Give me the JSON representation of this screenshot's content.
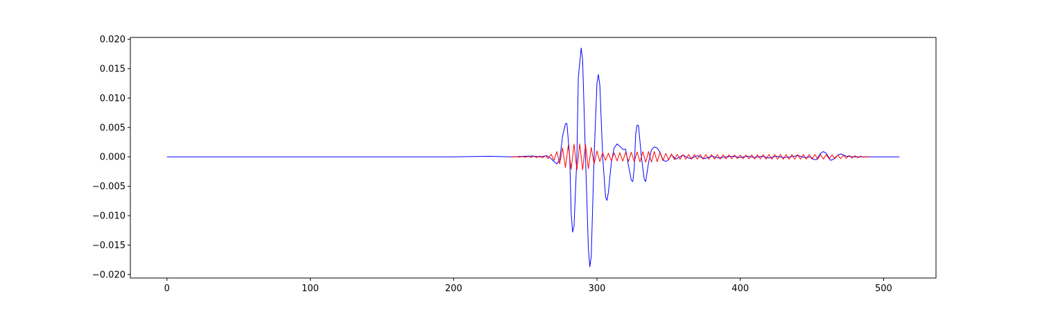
{
  "chart_data": {
    "type": "line",
    "title": "",
    "xlabel": "",
    "ylabel": "",
    "xlim": [
      -25.55,
      536.55
    ],
    "ylim": [
      -0.0206,
      0.0203
    ],
    "grid": false,
    "legend": "none",
    "x_ticks": [
      0,
      100,
      200,
      300,
      400,
      500
    ],
    "x_tick_labels": [
      "0",
      "100",
      "200",
      "300",
      "400",
      "500"
    ],
    "y_ticks": [
      0.02,
      0.015,
      0.01,
      0.005,
      0.0,
      -0.005,
      -0.01,
      -0.015,
      -0.02
    ],
    "y_tick_labels": [
      "0.020",
      "0.015",
      "0.010",
      "0.005",
      "0.000",
      "−0.005",
      "−0.010",
      "−0.015",
      "−0.020"
    ],
    "series": [
      {
        "color": "#0000ff",
        "points": [
          [
            0,
            0
          ],
          [
            50,
            0
          ],
          [
            100,
            0
          ],
          [
            150,
            0
          ],
          [
            200,
            0
          ],
          [
            225,
            0.0001
          ],
          [
            240,
            0.0
          ],
          [
            250,
            0.0001
          ],
          [
            255,
            0.00015
          ],
          [
            260,
            0.0
          ],
          [
            265,
            0.0002
          ],
          [
            268,
            -0.0003
          ],
          [
            270,
            -0.0008
          ],
          [
            272,
            -0.0012
          ],
          [
            274,
            -0.0005
          ],
          [
            276,
            0.0035
          ],
          [
            278,
            0.0056
          ],
          [
            279,
            0.0057
          ],
          [
            281,
            0.0
          ],
          [
            282,
            -0.0095
          ],
          [
            283,
            -0.0128
          ],
          [
            284,
            -0.0118
          ],
          [
            286,
            0.0
          ],
          [
            287,
            0.0135
          ],
          [
            289,
            0.0185
          ],
          [
            290,
            0.0165
          ],
          [
            292,
            0.0
          ],
          [
            294,
            -0.0155
          ],
          [
            295,
            -0.0187
          ],
          [
            296,
            -0.017
          ],
          [
            298,
            0.0
          ],
          [
            300,
            0.0125
          ],
          [
            301,
            0.014
          ],
          [
            302,
            0.0122
          ],
          [
            304,
            0.0
          ],
          [
            306,
            -0.0068
          ],
          [
            307,
            -0.0074
          ],
          [
            308,
            -0.006
          ],
          [
            310,
            -0.001
          ],
          [
            312,
            0.0015
          ],
          [
            314,
            0.0022
          ],
          [
            316,
            0.0018
          ],
          [
            318,
            0.0013
          ],
          [
            320,
            0.0013
          ],
          [
            322,
            -0.0015
          ],
          [
            324,
            -0.004
          ],
          [
            325,
            -0.0042
          ],
          [
            326,
            -0.002
          ],
          [
            327,
            0.0038
          ],
          [
            328,
            0.0054
          ],
          [
            329,
            0.0053
          ],
          [
            331,
            0.0
          ],
          [
            333,
            -0.0038
          ],
          [
            334,
            -0.0042
          ],
          [
            336,
            -0.001
          ],
          [
            338,
            0.0012
          ],
          [
            340,
            0.0017
          ],
          [
            342,
            0.0015
          ],
          [
            344,
            0.0008
          ],
          [
            346,
            -0.0005
          ],
          [
            348,
            -0.0008
          ],
          [
            350,
            -0.0005
          ],
          [
            352,
            0.0004
          ],
          [
            355,
            -0.0004
          ],
          [
            360,
            0.0003
          ],
          [
            365,
            -0.0003
          ],
          [
            370,
            0.0002
          ],
          [
            375,
            -0.0003
          ],
          [
            380,
            0.0001
          ],
          [
            385,
            -0.0002
          ],
          [
            390,
            0.0
          ],
          [
            395,
            0.0001
          ],
          [
            400,
            -0.0001
          ],
          [
            405,
            0.0001
          ],
          [
            410,
            -0.0001
          ],
          [
            415,
            0.0001
          ],
          [
            420,
            -0.0002
          ],
          [
            425,
            0.0001
          ],
          [
            430,
            -0.0001
          ],
          [
            435,
            0.0
          ],
          [
            440,
            0.0002
          ],
          [
            445,
            -0.0001
          ],
          [
            449,
            0.0
          ],
          [
            451,
            -0.0004
          ],
          [
            453,
            -0.0005
          ],
          [
            456,
            0.0006
          ],
          [
            458,
            0.0009
          ],
          [
            460,
            0.0006
          ],
          [
            463,
            -0.0006
          ],
          [
            465,
            -0.0004
          ],
          [
            468,
            0.0003
          ],
          [
            470,
            0.0005
          ],
          [
            474,
            0.0001
          ],
          [
            480,
            0.0
          ],
          [
            490,
            0.0
          ],
          [
            500,
            0.0
          ],
          [
            511,
            0.0
          ]
        ]
      },
      {
        "color": "#ff0000",
        "start": 240,
        "end": 490,
        "step": 2,
        "envelope": [
          [
            240,
            0.0
          ],
          [
            255,
            0.0001
          ],
          [
            265,
            0.0002
          ],
          [
            270,
            0.0006
          ],
          [
            274,
            0.0012
          ],
          [
            278,
            0.0018
          ],
          [
            282,
            0.0021
          ],
          [
            286,
            0.0022
          ],
          [
            290,
            0.0022
          ],
          [
            294,
            0.002
          ],
          [
            298,
            0.0012
          ],
          [
            302,
            0.0008
          ],
          [
            306,
            0.0006
          ],
          [
            315,
            0.0007
          ],
          [
            325,
            0.0008
          ],
          [
            333,
            0.0009
          ],
          [
            340,
            0.0009
          ],
          [
            345,
            0.0007
          ],
          [
            350,
            0.0005
          ],
          [
            360,
            0.0004
          ],
          [
            380,
            0.0004
          ],
          [
            400,
            0.0003
          ],
          [
            420,
            0.0004
          ],
          [
            440,
            0.0004
          ],
          [
            455,
            0.0004
          ],
          [
            470,
            0.0003
          ],
          [
            480,
            0.0002
          ],
          [
            490,
            0.0
          ]
        ]
      }
    ]
  }
}
